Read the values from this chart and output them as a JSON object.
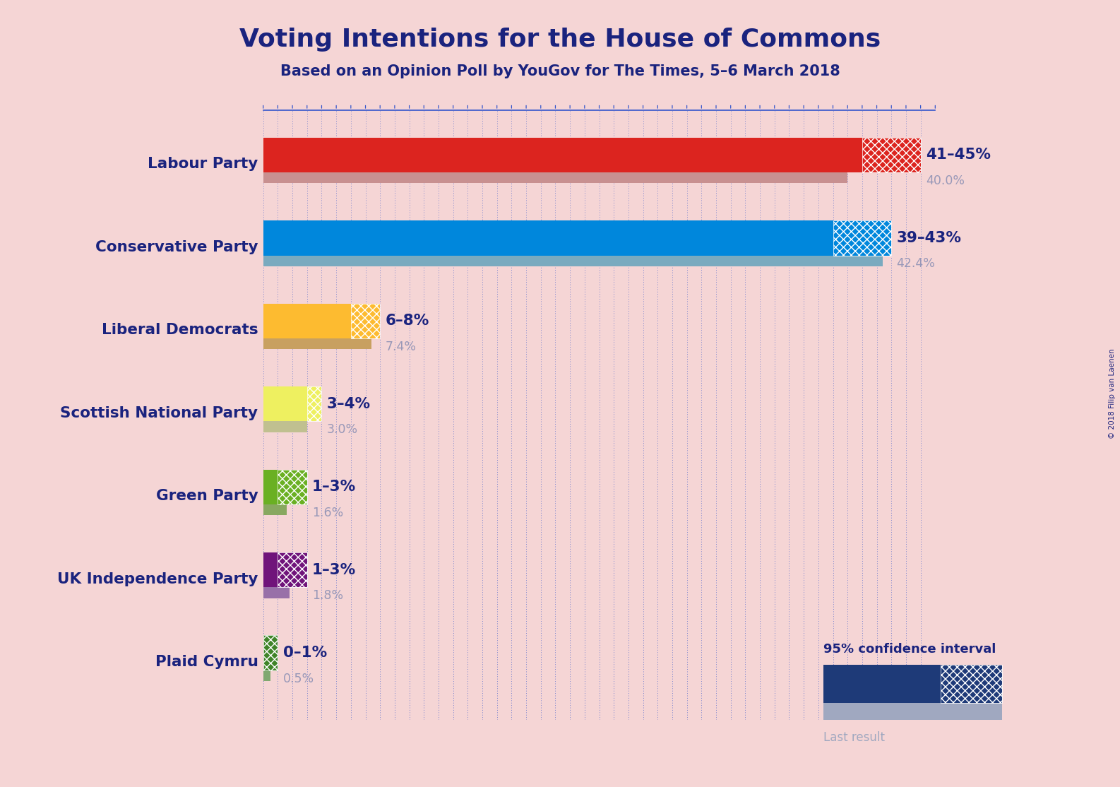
{
  "title": "Voting Intentions for the House of Commons",
  "subtitle": "Based on an Opinion Poll by YouGov for The Times, 5–6 March 2018",
  "copyright": "© 2018 Filip van Laenen",
  "background_color": "#f5d5d5",
  "parties": [
    {
      "name": "Labour Party",
      "ci_low": 41,
      "ci_high": 45,
      "last_result": 40.0,
      "color": "#dc241f",
      "light_color": "#c89090",
      "label_range": "41–45%",
      "label_last": "40.0%"
    },
    {
      "name": "Conservative Party",
      "ci_low": 39,
      "ci_high": 43,
      "last_result": 42.4,
      "color": "#0087dc",
      "light_color": "#7aaabf",
      "label_range": "39–43%",
      "label_last": "42.4%"
    },
    {
      "name": "Liberal Democrats",
      "ci_low": 6,
      "ci_high": 8,
      "last_result": 7.4,
      "color": "#fdbb30",
      "light_color": "#c8a060",
      "label_range": "6–8%",
      "label_last": "7.4%"
    },
    {
      "name": "Scottish National Party",
      "ci_low": 3,
      "ci_high": 4,
      "last_result": 3.0,
      "color": "#eef060",
      "light_color": "#c0c090",
      "label_range": "3–4%",
      "label_last": "3.0%"
    },
    {
      "name": "Green Party",
      "ci_low": 1,
      "ci_high": 3,
      "last_result": 1.6,
      "color": "#6ab023",
      "light_color": "#88a860",
      "label_range": "1–3%",
      "label_last": "1.6%"
    },
    {
      "name": "UK Independence Party",
      "ci_low": 1,
      "ci_high": 3,
      "last_result": 1.8,
      "color": "#70147a",
      "light_color": "#9870a8",
      "label_range": "1–3%",
      "label_last": "1.8%"
    },
    {
      "name": "Plaid Cymru",
      "ci_low": 0,
      "ci_high": 1,
      "last_result": 0.5,
      "color": "#3f8428",
      "light_color": "#80a870",
      "label_range": "0–1%",
      "label_last": "0.5%"
    }
  ],
  "xmax": 46,
  "label_color_range": "#1a237e",
  "label_color_last": "#9898b8",
  "party_name_color": "#1a237e",
  "dotline_color": "#3355cc",
  "legend_ci_color": "#1e3a78",
  "legend_last_color": "#a0a8c0",
  "title_color": "#1a237e",
  "subtitle_color": "#1a237e"
}
